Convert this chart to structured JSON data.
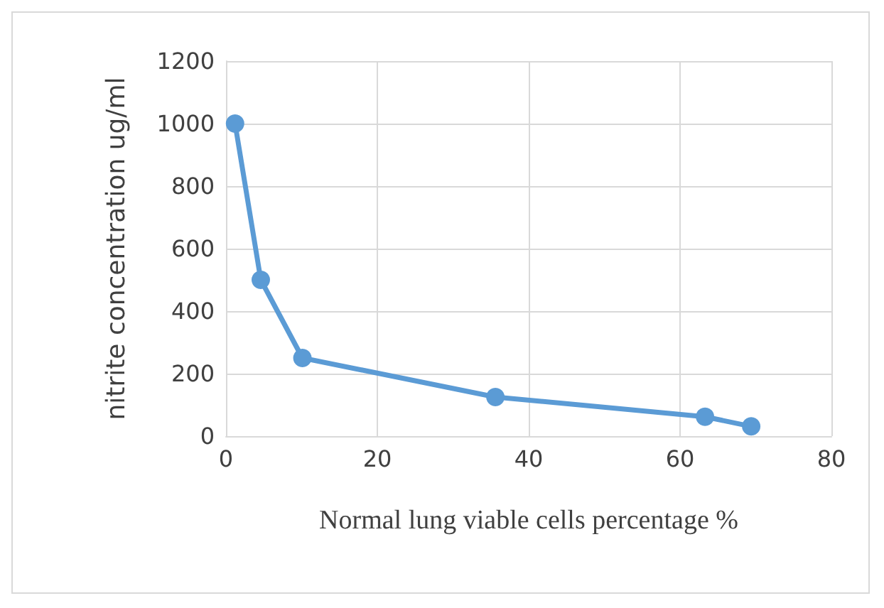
{
  "chart_data": {
    "type": "line",
    "xlabel": "Normal lung viable cells percentage %",
    "ylabel": "nitrite concentration ug/ml",
    "x": [
      1.2,
      4.6,
      10.1,
      35.6,
      63.3,
      69.4
    ],
    "series": [
      {
        "color": "#5b9bd5",
        "values": [
          1000,
          500,
          250,
          125,
          62,
          31
        ]
      }
    ],
    "xlim": [
      0,
      80
    ],
    "xticks": [
      0,
      20,
      40,
      60,
      80
    ],
    "ylim": [
      0,
      1200
    ],
    "yticks": [
      0,
      200,
      400,
      600,
      800,
      1000,
      1200
    ],
    "grid": true,
    "marker": "circle",
    "line_style": "solid"
  }
}
